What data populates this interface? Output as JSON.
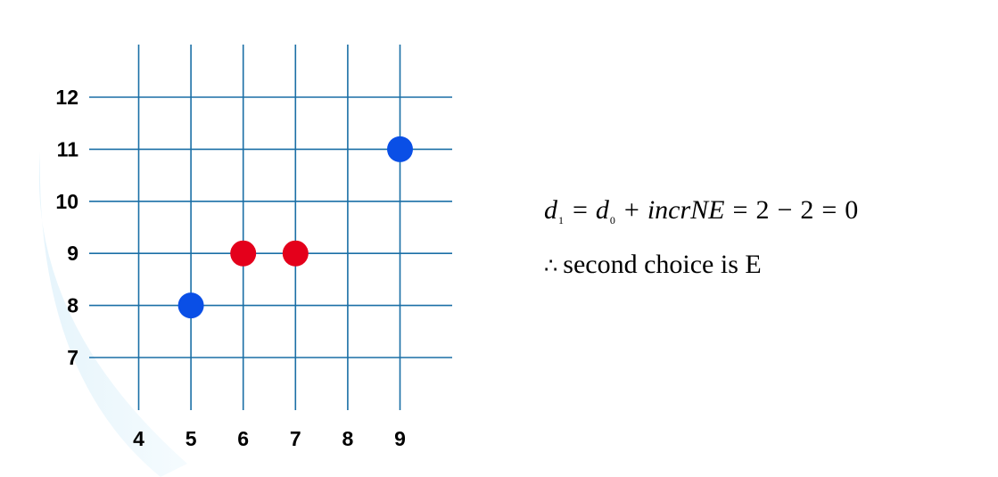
{
  "grid": {
    "x_ticks": [
      "4",
      "5",
      "6",
      "7",
      "8",
      "9"
    ],
    "y_ticks": [
      "12",
      "11",
      "10",
      "9",
      "8",
      "7"
    ],
    "colors": {
      "grid_line": "#1a6fa6",
      "selected_pixel": "#e4001b",
      "endpoint": "#0a4fe6"
    },
    "points": [
      {
        "x": 5,
        "y": 8,
        "kind": "endpoint"
      },
      {
        "x": 9,
        "y": 11,
        "kind": "endpoint"
      },
      {
        "x": 6,
        "y": 9,
        "kind": "selected"
      },
      {
        "x": 7,
        "y": 9,
        "kind": "selected"
      }
    ]
  },
  "equation": {
    "d": "d",
    "sub1": "1",
    "sub0": "0",
    "eq": "=",
    "plus": "+",
    "incr": "incrNE",
    "two_a": "2",
    "minus": "−",
    "two_b": "2",
    "zero": "0",
    "therefore_symbol": "∴",
    "conclusion": "second choice is E"
  }
}
